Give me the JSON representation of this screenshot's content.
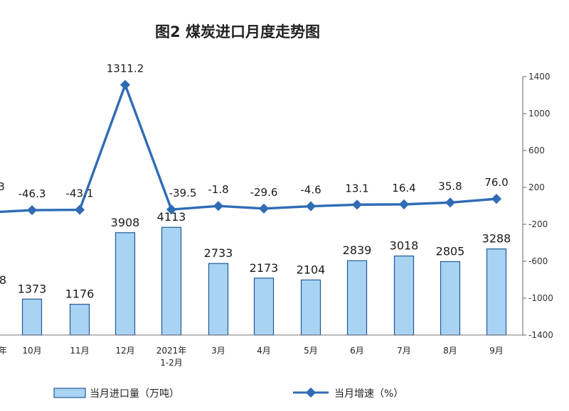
{
  "chart_data": {
    "type": "bar+line",
    "title": "图2  煤炭进口月度走势图",
    "categories": [
      "年",
      "10月",
      "11月",
      "12月",
      "2021年\n1-2月",
      "3月",
      "4月",
      "5月",
      "6月",
      "7月",
      "8月",
      "9月"
    ],
    "series": [
      {
        "name": "当月进口量（万吨）",
        "type": "bar",
        "values": [
          null,
          1373,
          1176,
          3908,
          4113,
          2733,
          2173,
          2104,
          2839,
          3018,
          2805,
          3288
        ],
        "labels": [
          "8",
          "1373",
          "1176",
          "3908",
          "4113",
          "2733",
          "2173",
          "2104",
          "2839",
          "3018",
          "2805",
          "3288"
        ]
      },
      {
        "name": "当月增速（%）",
        "type": "line",
        "axis": "right",
        "values": [
          null,
          -46.3,
          -43.1,
          1311.2,
          -39.5,
          -1.8,
          -29.6,
          -4.6,
          13.1,
          16.4,
          35.8,
          76.0
        ],
        "labels": [
          "3",
          "-46.3",
          "-43.1",
          "1311.2",
          "-39.5",
          "-1.8",
          "-29.6",
          "-4.6",
          "13.1",
          "16.4",
          "35.8",
          "76.0"
        ]
      }
    ],
    "right_axis": {
      "ticks": [
        "1400",
        "1000",
        "600",
        "200",
        "-200",
        "-600",
        "-1000",
        "-1400"
      ],
      "ylim": [
        -1400,
        1400
      ]
    },
    "legend": {
      "position": "bottom"
    },
    "colors": {
      "bar_fill": "#a9d3f3",
      "bar_stroke": "#1e5a9a",
      "line": "#2f6cb5"
    }
  }
}
